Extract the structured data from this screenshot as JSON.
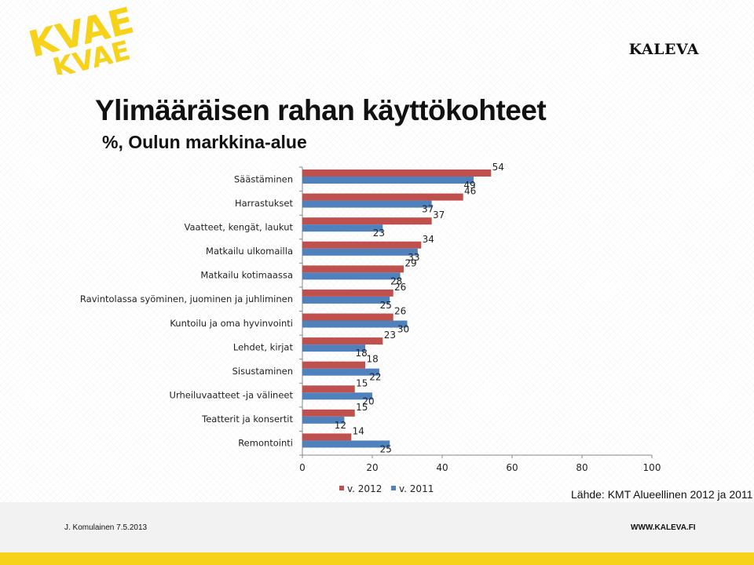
{
  "header": {
    "brand": "KALEVA",
    "logo_text": "KVAE"
  },
  "title": "Ylimääräisen rahan käyttökohteet",
  "subtitle": "%, Oulun markkina-alue",
  "source": "Lähde: KMT Alueellinen 2012 ja 2011",
  "footer": {
    "author_date": "J. Komulainen 7.5.2013",
    "website": "WWW.KALEVA.FI"
  },
  "colors": {
    "series_2012": "#c0504d",
    "series_2011": "#4f81bd",
    "logo_yellow": "#f6d21a"
  },
  "chart_data": {
    "type": "bar",
    "orientation": "horizontal",
    "categories": [
      "Säästäminen",
      "Harrastukset",
      "Vaatteet, kengät, laukut",
      "Matkailu ulkomailla",
      "Matkailu kotimaassa",
      "Ravintolassa syöminen, juominen ja juhliminen",
      "Kuntoilu ja oma hyvinvointi",
      "Lehdet, kirjat",
      "Sisustaminen",
      "Urheiluvaatteet -ja välineet",
      "Teatterit ja konsertit",
      "Remontointi"
    ],
    "series": [
      {
        "name": "v. 2012",
        "values": [
          54,
          46,
          37,
          34,
          29,
          26,
          26,
          23,
          18,
          15,
          15,
          14
        ]
      },
      {
        "name": "v. 2011",
        "values": [
          49,
          37,
          23,
          33,
          28,
          25,
          30,
          18,
          22,
          20,
          12,
          25
        ]
      }
    ],
    "xlim": [
      0,
      100
    ],
    "xticks": [
      0,
      20,
      40,
      60,
      80,
      100
    ],
    "legend": "bottom",
    "grid": false
  }
}
